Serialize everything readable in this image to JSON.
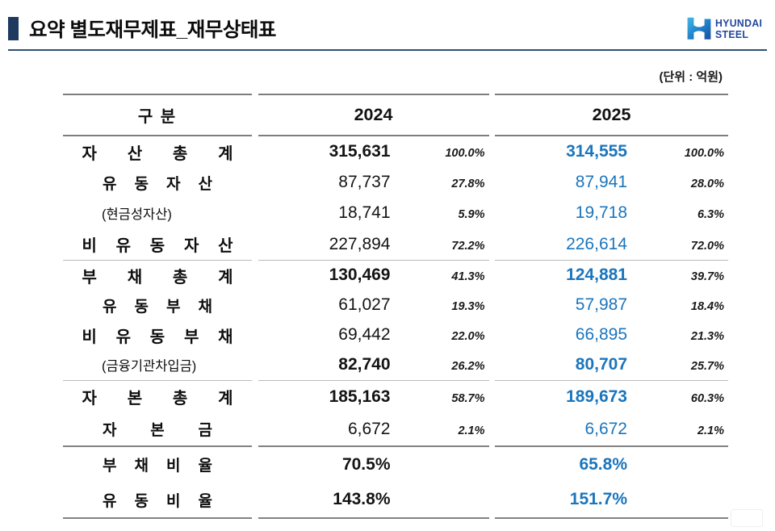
{
  "header": {
    "title": "요약 별도재무제표_재무상태표",
    "logo": {
      "icon": "hyundai-steel-h-icon",
      "brand_line1": "HYUNDAI",
      "brand_line2": "STEEL"
    }
  },
  "colors": {
    "accent_blue": "#1b75bc",
    "title_bar_navy": "#1e3a5f",
    "title_rule_navy": "#2e4f72",
    "logo_text_blue": "#21469b",
    "logo_gradient_light": "#45b8e8",
    "logo_gradient_dark": "#1a4f9e"
  },
  "table": {
    "unit_note": "(단위 : 억원)",
    "columns": {
      "category": "구 분",
      "y2024": "2024",
      "y2025": "2025"
    },
    "bottom_divider": "thick",
    "sections": [
      {
        "divider": "dark",
        "rows": [
          {
            "label": "자 산 총 계",
            "style": "l1",
            "v2024": "315,631",
            "b2024": true,
            "p2024": "100.0%",
            "v2025": "314,555",
            "b2025": true,
            "p2025": "100.0%"
          },
          {
            "label": "유 동 자 산",
            "style": "l2",
            "v2024": "87,737",
            "b2024": false,
            "p2024": "27.8%",
            "v2025": "87,941",
            "b2025": false,
            "p2025": "28.0%"
          },
          {
            "label": "(현금성자산)",
            "style": "paren",
            "v2024": "18,741",
            "b2024": false,
            "p2024": "5.9%",
            "v2025": "19,718",
            "b2025": false,
            "p2025": "6.3%"
          },
          {
            "label": "비 유 동 자 산",
            "style": "l1",
            "v2024": "227,894",
            "b2024": false,
            "p2024": "72.2%",
            "v2025": "226,614",
            "b2025": false,
            "p2025": "72.0%"
          }
        ]
      },
      {
        "divider": "thin",
        "rows": [
          {
            "label": "부 채 총 계",
            "style": "l1",
            "v2024": "130,469",
            "b2024": true,
            "p2024": "41.3%",
            "v2025": "124,881",
            "b2025": true,
            "p2025": "39.7%"
          },
          {
            "label": "유 동 부 채",
            "style": "l2",
            "v2024": "61,027",
            "b2024": false,
            "p2024": "19.3%",
            "v2025": "57,987",
            "b2025": false,
            "p2025": "18.4%"
          },
          {
            "label": "비 유 동 부 채",
            "style": "l1",
            "v2024": "69,442",
            "b2024": false,
            "p2024": "22.0%",
            "v2025": "66,895",
            "b2025": false,
            "p2025": "21.3%"
          },
          {
            "label": "(금융기관차입금)",
            "style": "paren",
            "v2024": "82,740",
            "b2024": true,
            "p2024": "26.2%",
            "v2025": "80,707",
            "b2025": true,
            "p2025": "25.7%"
          }
        ]
      },
      {
        "divider": "thin",
        "rows": [
          {
            "label": "자 본 총 계",
            "style": "l1",
            "v2024": "185,163",
            "b2024": true,
            "p2024": "58.7%",
            "v2025": "189,673",
            "b2025": true,
            "p2025": "60.3%"
          },
          {
            "label": "자 본 금",
            "style": "l2",
            "v2024": "6,672",
            "b2024": false,
            "p2024": "2.1%",
            "v2025": "6,672",
            "b2025": false,
            "p2025": "2.1%"
          }
        ]
      },
      {
        "divider": "thick",
        "rows": [
          {
            "label": "부 채 비 율",
            "style": "l2",
            "v2024": "70.5%",
            "b2024": true,
            "p2024": "",
            "v2025": "65.8%",
            "b2025": true,
            "p2025": ""
          },
          {
            "label": "유 동 비 율",
            "style": "l2",
            "v2024": "143.8%",
            "b2024": true,
            "p2024": "",
            "v2025": "151.7%",
            "b2025": true,
            "p2025": ""
          }
        ]
      }
    ]
  }
}
